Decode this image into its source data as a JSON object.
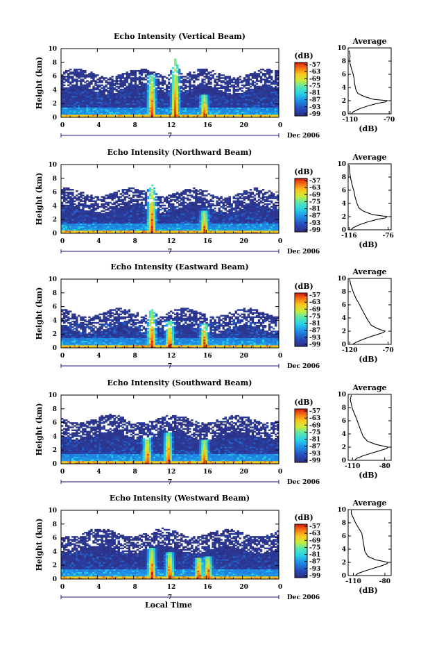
{
  "chart_data": [
    {
      "type": "heatmap",
      "title": "Echo Intensity (Vertical Beam)",
      "ylabel": "Height (km)",
      "xlim": [
        0,
        24
      ],
      "ylim": [
        0,
        10
      ],
      "x_ticks": [
        "0",
        "4",
        "8",
        "12",
        "16",
        "20",
        "0"
      ],
      "y_ticks": [
        "0",
        "2",
        "4",
        "6",
        "8",
        "10"
      ],
      "day_label": "7",
      "month_label": "Dec 2006",
      "colorbar": {
        "unit": "(dB)",
        "ticks": [
          "-57",
          "-63",
          "-69",
          "-75",
          "-81",
          "-87",
          "-93",
          "-99"
        ]
      },
      "profile": {
        "title": "Average",
        "xlabel": "(dB)",
        "x_ticks": [
          "-110",
          "-70"
        ],
        "xlim": [
          -112,
          -68
        ],
        "points": [
          [
            -108.5,
            0
          ],
          [
            -107,
            0.3
          ],
          [
            -100,
            0.8
          ],
          [
            -92,
            1.2
          ],
          [
            -82,
            1.6
          ],
          [
            -74,
            1.8
          ],
          [
            -72,
            2.0
          ],
          [
            -86,
            2.2
          ],
          [
            -95,
            2.6
          ],
          [
            -102,
            3.1
          ],
          [
            -104,
            3.6
          ],
          [
            -105.5,
            4.6
          ],
          [
            -106,
            5.4
          ],
          [
            -107,
            6.1
          ],
          [
            -108.5,
            6.8
          ],
          [
            -110,
            7.6
          ],
          [
            -110.5,
            8.2
          ],
          [
            -110,
            8.8
          ],
          [
            -111,
            9.6
          ]
        ]
      },
      "intensity_model": {
        "base_top_km": 6.5,
        "peaks": [
          [
            10,
            6.2
          ],
          [
            12.6,
            8.7
          ],
          [
            15.8,
            3.4
          ]
        ]
      }
    },
    {
      "type": "heatmap",
      "title": "Echo Intensity (Northward Beam)",
      "ylabel": "Height (km)",
      "xlim": [
        0,
        24
      ],
      "ylim": [
        0,
        10
      ],
      "x_ticks": [
        "0",
        "4",
        "8",
        "12",
        "16",
        "20",
        "0"
      ],
      "y_ticks": [
        "0",
        "2",
        "4",
        "6",
        "8",
        "10"
      ],
      "day_label": "7",
      "month_label": "Dec 2006",
      "colorbar": {
        "unit": "(dB)",
        "ticks": [
          "-57",
          "-63",
          "-69",
          "-75",
          "-81",
          "-87",
          "-93",
          "-99"
        ]
      },
      "profile": {
        "title": "Average",
        "xlabel": "(dB)",
        "x_ticks": [
          "-116",
          "-76"
        ],
        "xlim": [
          -117,
          -73
        ],
        "points": [
          [
            -114,
            0
          ],
          [
            -112,
            0.3
          ],
          [
            -105,
            0.8
          ],
          [
            -97,
            1.2
          ],
          [
            -87,
            1.6
          ],
          [
            -79,
            1.8
          ],
          [
            -77,
            2.0
          ],
          [
            -92,
            2.3
          ],
          [
            -101,
            2.8
          ],
          [
            -106,
            3.3
          ],
          [
            -108,
            4.0
          ],
          [
            -110,
            5.0
          ],
          [
            -111,
            5.8
          ],
          [
            -112.5,
            6.6
          ],
          [
            -114,
            7.5
          ],
          [
            -115,
            8.3
          ],
          [
            -115.5,
            9.0
          ],
          [
            -116,
            9.8
          ]
        ]
      },
      "intensity_model": {
        "base_top_km": 6.0,
        "peaks": [
          [
            10,
            7.1
          ],
          [
            15.8,
            3.3
          ]
        ]
      }
    },
    {
      "type": "heatmap",
      "title": "Echo Intensity (Eastward Beam)",
      "ylabel": "Height (km)",
      "xlim": [
        0,
        24
      ],
      "ylim": [
        0,
        10
      ],
      "x_ticks": [
        "0",
        "4",
        "8",
        "12",
        "16",
        "20",
        "0"
      ],
      "y_ticks": [
        "0",
        "2",
        "4",
        "6",
        "8",
        "10"
      ],
      "day_label": "7",
      "month_label": "Dec 2006",
      "colorbar": {
        "unit": "(dB)",
        "ticks": [
          "-57",
          "-63",
          "-69",
          "-75",
          "-81",
          "-87",
          "-93",
          "-99"
        ]
      },
      "profile": {
        "title": "Average",
        "xlabel": "(dB)",
        "x_ticks": [
          "-120",
          "-70"
        ],
        "xlim": [
          -122,
          -66
        ],
        "points": [
          [
            -116,
            0
          ],
          [
            -112,
            0.3
          ],
          [
            -104,
            0.7
          ],
          [
            -95,
            1.1
          ],
          [
            -84,
            1.5
          ],
          [
            -76,
            1.8
          ],
          [
            -74,
            2.0
          ],
          [
            -84,
            2.4
          ],
          [
            -92,
            2.9
          ],
          [
            -96,
            3.6
          ],
          [
            -100,
            4.4
          ],
          [
            -104,
            5.3
          ],
          [
            -108,
            6.2
          ],
          [
            -112,
            7.0
          ],
          [
            -115,
            7.8
          ],
          [
            -117,
            8.5
          ],
          [
            -119,
            9.2
          ],
          [
            -120,
            9.9
          ]
        ]
      },
      "intensity_model": {
        "base_top_km": 5.2,
        "peaks": [
          [
            10,
            5.6
          ],
          [
            12,
            4.0
          ],
          [
            15.8,
            3.6
          ]
        ]
      }
    },
    {
      "type": "heatmap",
      "title": "Echo Intensity (Southward Beam)",
      "ylabel": "Height (km)",
      "xlim": [
        0,
        24
      ],
      "ylim": [
        0,
        10
      ],
      "x_ticks": [
        "0",
        "4",
        "8",
        "12",
        "16",
        "20",
        "0"
      ],
      "y_ticks": [
        "0",
        "2",
        "4",
        "6",
        "8",
        "10"
      ],
      "day_label": "7",
      "month_label": "Dec 2006",
      "colorbar": {
        "unit": "(dB)",
        "ticks": [
          "-57",
          "-63",
          "-69",
          "-75",
          "-81",
          "-87",
          "-93",
          "-99"
        ]
      },
      "profile": {
        "title": "Average",
        "xlabel": "(dB)",
        "x_ticks": [
          "-110",
          "-80"
        ],
        "xlim": [
          -114,
          -74
        ],
        "points": [
          [
            -108,
            0
          ],
          [
            -106,
            0.3
          ],
          [
            -100,
            0.7
          ],
          [
            -92,
            1.1
          ],
          [
            -84,
            1.5
          ],
          [
            -78,
            1.8
          ],
          [
            -77,
            2.0
          ],
          [
            -88,
            2.4
          ],
          [
            -96,
            2.9
          ],
          [
            -100,
            3.6
          ],
          [
            -102,
            4.4
          ],
          [
            -104,
            5.3
          ],
          [
            -106,
            6.2
          ],
          [
            -108,
            7.0
          ],
          [
            -110,
            7.8
          ],
          [
            -111,
            8.5
          ],
          [
            -112,
            9.2
          ],
          [
            -111,
            9.9
          ]
        ]
      },
      "intensity_model": {
        "base_top_km": 6.6,
        "peaks": [
          [
            9.5,
            4.0
          ],
          [
            11.8,
            4.6
          ],
          [
            15.8,
            3.6
          ]
        ]
      }
    },
    {
      "type": "heatmap",
      "title": "Echo Intensity (Westward Beam)",
      "ylabel": "Height (km)",
      "xlim": [
        0,
        24
      ],
      "ylim": [
        0,
        10
      ],
      "x_ticks": [
        "0",
        "4",
        "8",
        "12",
        "16",
        "20",
        "0"
      ],
      "y_ticks": [
        "0",
        "2",
        "4",
        "6",
        "8",
        "10"
      ],
      "day_label": "7",
      "month_label": "Dec 2006",
      "xlabel": "Local Time",
      "colorbar": {
        "unit": "(dB)",
        "ticks": [
          "-57",
          "-63",
          "-69",
          "-75",
          "-81",
          "-87",
          "-93",
          "-99"
        ]
      },
      "profile": {
        "title": "Average",
        "xlabel": "(dB)",
        "x_ticks": [
          "-110",
          "-80"
        ],
        "xlim": [
          -115,
          -74
        ],
        "points": [
          [
            -108,
            0
          ],
          [
            -106,
            0.3
          ],
          [
            -99,
            0.7
          ],
          [
            -91,
            1.1
          ],
          [
            -83,
            1.5
          ],
          [
            -78,
            1.8
          ],
          [
            -77,
            2.0
          ],
          [
            -89,
            2.4
          ],
          [
            -96,
            2.9
          ],
          [
            -99,
            3.6
          ],
          [
            -100,
            4.5
          ],
          [
            -101,
            5.5
          ],
          [
            -102,
            6.4
          ],
          [
            -105,
            7.2
          ],
          [
            -108,
            8.0
          ],
          [
            -110,
            8.7
          ],
          [
            -112,
            9.4
          ],
          [
            -112,
            9.9
          ]
        ]
      },
      "intensity_model": {
        "base_top_km": 6.8,
        "peaks": [
          [
            10,
            4.6
          ],
          [
            12,
            4.0
          ],
          [
            15.2,
            3.2
          ],
          [
            16.2,
            3.4
          ]
        ]
      }
    }
  ]
}
